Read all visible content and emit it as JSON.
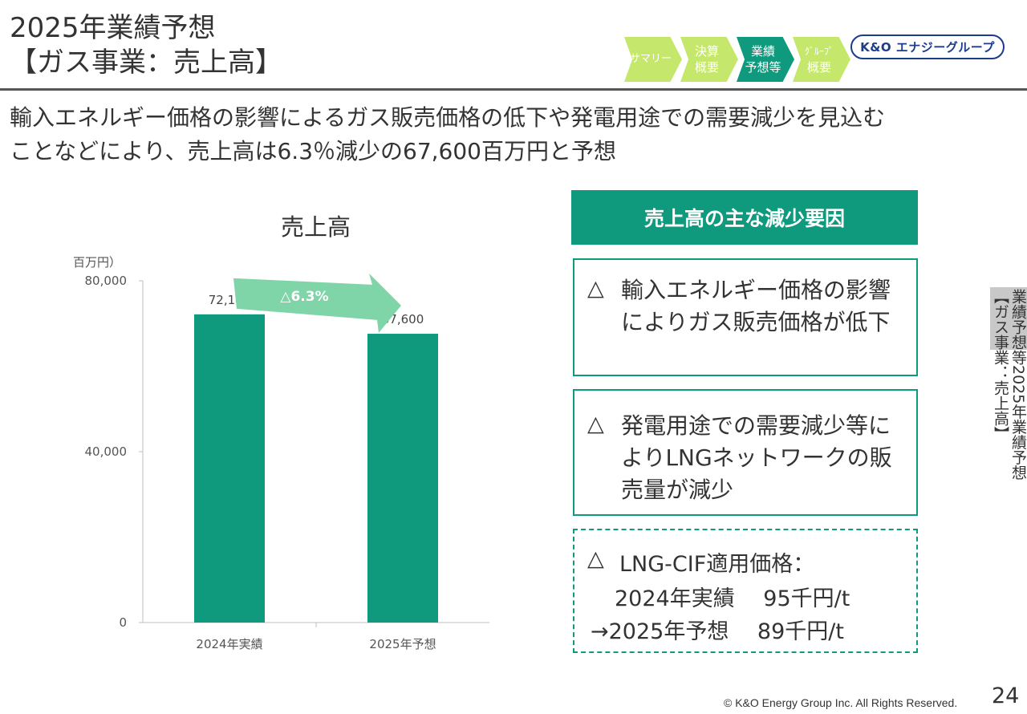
{
  "header": {
    "title_line1": "2025年業績予想",
    "title_line2": "【ガス事業：売上高】",
    "logo": "K&O エナジーグループ",
    "nav": [
      {
        "lines": [
          "サマリー"
        ]
      },
      {
        "lines": [
          "決算",
          "概要"
        ]
      },
      {
        "lines": [
          "業績",
          "予想等"
        ]
      },
      {
        "lines": [
          "ｸﾞﾙｰﾌﾟ",
          "概要"
        ]
      }
    ]
  },
  "lead": {
    "line1": "輸入エネルギー価格の影響によるガス販売価格の低下や発電用途での需要減少を見込む",
    "line2": "ことなどにより、売上高は6.3％減少の67,600百万円と予想"
  },
  "chart_data": {
    "type": "bar",
    "title": "売上高",
    "ylabel": "（百万円）",
    "categories": [
      "2024年実績",
      "2025年予想"
    ],
    "values": [
      72147,
      67600
    ],
    "value_labels": [
      "72,147",
      "67,600"
    ],
    "ylim": [
      0,
      80000
    ],
    "yticks": [
      0,
      40000,
      80000
    ],
    "ytick_labels": [
      "0",
      "40,000",
      "80,000"
    ],
    "change_label": "△6.3%",
    "bar_color": "#0f9a7e",
    "arrow_color": "#7fd4a8",
    "grid": false
  },
  "factors": {
    "header": "売上高の主な減少要因",
    "marker": "△",
    "item1": "輸入エネルギー価格の影響によりガス販売価格が低下",
    "item2": "発電用途での需要減少等によりLNGネットワークの販売量が減少",
    "item3_line1": "LNG-CIF適用価格：",
    "item3_line2": "2024年実績　 95千円/t",
    "item3_line3": "→2025年予想　 89千円/t"
  },
  "side_tab": {
    "section": "業績予想等",
    "page_title": "2025年業績予想【ガス事業：売上高】"
  },
  "footer": {
    "copyright": "© K&O Energy Group Inc. All Rights Reserved.",
    "page": "24"
  },
  "colors": {
    "accent": "#0f9a7e",
    "nav_light": "#c5e86c",
    "logo_blue": "#1e3c8c"
  }
}
